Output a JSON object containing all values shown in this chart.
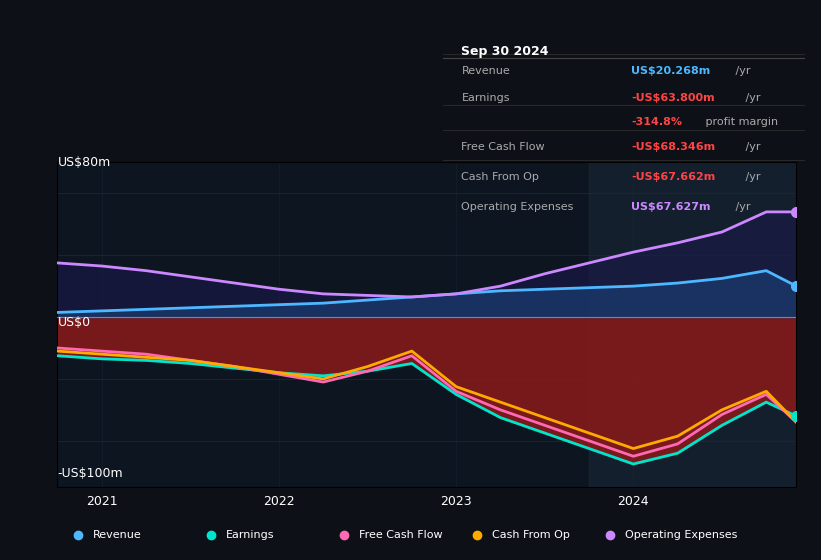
{
  "bg_color": "#0d1117",
  "plot_bg_color": "#0d1520",
  "title": "Sep 30 2024",
  "y_label_top": "US$80m",
  "y_label_zero": "US$0",
  "y_label_bottom": "-US$100m",
  "x_ticks": [
    2021,
    2022,
    2023,
    2024
  ],
  "ylim": [
    -110,
    100
  ],
  "tooltip": {
    "title": "Sep 30 2024",
    "rows": [
      {
        "label": "Revenue",
        "value": "US$20.268m /yr",
        "value_color": "#4db8ff"
      },
      {
        "label": "Earnings",
        "value": "-US$63.800m /yr",
        "value_color": "#ff4444"
      },
      {
        "label": "",
        "value": "-314.8% profit margin",
        "value_color": "#ff4444"
      },
      {
        "label": "Free Cash Flow",
        "value": "-US$68.346m /yr",
        "value_color": "#ff4444"
      },
      {
        "label": "Cash From Op",
        "value": "-US$67.662m /yr",
        "value_color": "#ff4444"
      },
      {
        "label": "Operating Expenses",
        "value": "US$67.627m /yr",
        "value_color": "#cc88ff"
      }
    ]
  },
  "legend": [
    {
      "label": "Revenue",
      "color": "#4db8ff"
    },
    {
      "label": "Earnings",
      "color": "#00e5cc"
    },
    {
      "label": "Free Cash Flow",
      "color": "#ff69b4"
    },
    {
      "label": "Cash From Op",
      "color": "#ffaa00"
    },
    {
      "label": "Operating Expenses",
      "color": "#cc88ff"
    }
  ],
  "x": [
    2020.75,
    2021.0,
    2021.25,
    2021.5,
    2021.75,
    2022.0,
    2022.25,
    2022.5,
    2022.75,
    2023.0,
    2023.25,
    2023.5,
    2023.75,
    2024.0,
    2024.25,
    2024.5,
    2024.75,
    2024.92
  ],
  "revenue": [
    3,
    4,
    5,
    6,
    7,
    8,
    9,
    11,
    13,
    15,
    17,
    18,
    19,
    20,
    22,
    25,
    30,
    20
  ],
  "earnings": [
    -25,
    -27,
    -28,
    -30,
    -33,
    -36,
    -38,
    -35,
    -30,
    -50,
    -65,
    -75,
    -85,
    -95,
    -88,
    -70,
    -55,
    -64
  ],
  "free_cf": [
    -20,
    -22,
    -24,
    -28,
    -32,
    -37,
    -42,
    -35,
    -25,
    -48,
    -60,
    -70,
    -80,
    -90,
    -82,
    -63,
    -50,
    -68
  ],
  "cash_op": [
    -22,
    -24,
    -26,
    -28,
    -32,
    -36,
    -40,
    -32,
    -22,
    -45,
    -55,
    -65,
    -75,
    -85,
    -77,
    -60,
    -48,
    -68
  ],
  "op_expenses": [
    35,
    33,
    30,
    26,
    22,
    18,
    15,
    14,
    13,
    15,
    20,
    28,
    35,
    42,
    48,
    55,
    68,
    68
  ],
  "revenue_color": "#4db8ff",
  "earnings_color": "#00e5cc",
  "free_cf_color": "#ff69b4",
  "cash_op_color": "#ffaa00",
  "op_expenses_color": "#cc88ff",
  "fill_positive_color": "#1a3a6e",
  "fill_negative_color": "#8b1a1a",
  "grid_color": "#2a3a4a",
  "zero_line_color": "#aaaaaa"
}
